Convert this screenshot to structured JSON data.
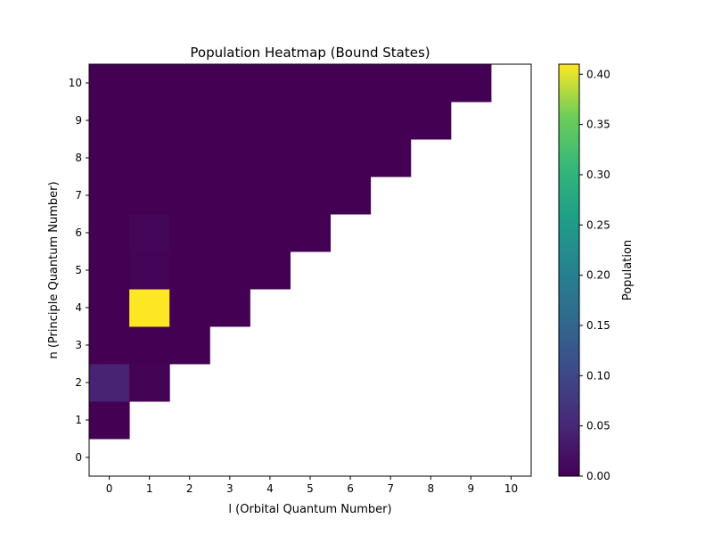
{
  "chart_data": {
    "type": "heatmap",
    "title": "Population Heatmap (Bound States)",
    "xlabel": "l (Orbital Quantum Number)",
    "ylabel": "n (Principle Quantum Number)",
    "x": [
      0,
      1,
      2,
      3,
      4,
      5,
      6,
      7,
      8,
      9,
      10
    ],
    "y": [
      0,
      1,
      2,
      3,
      4,
      5,
      6,
      7,
      8,
      9,
      10
    ],
    "xlim": [
      -0.5,
      10.5
    ],
    "ylim": [
      -0.5,
      10.5
    ],
    "colorbar": {
      "label": "Population",
      "colormap": "viridis",
      "range": [
        0,
        0.41
      ],
      "ticks": [
        0.0,
        0.05,
        0.1,
        0.15,
        0.2,
        0.25,
        0.3,
        0.35,
        0.4
      ],
      "tick_labels": [
        "0.00",
        "0.05",
        "0.10",
        "0.15",
        "0.20",
        "0.25",
        "0.30",
        "0.35",
        "0.40"
      ]
    },
    "values": [
      [
        null,
        null,
        null,
        null,
        null,
        null,
        null,
        null,
        null,
        null,
        null
      ],
      [
        0.0,
        null,
        null,
        null,
        null,
        null,
        null,
        null,
        null,
        null,
        null
      ],
      [
        0.045,
        0.002,
        null,
        null,
        null,
        null,
        null,
        null,
        null,
        null,
        null
      ],
      [
        0.0,
        0.0,
        0.0,
        null,
        null,
        null,
        null,
        null,
        null,
        null,
        null
      ],
      [
        0.0,
        0.41,
        0.0,
        0.0,
        null,
        null,
        null,
        null,
        null,
        null,
        null
      ],
      [
        0.0,
        0.004,
        0.0,
        0.0,
        0.0,
        null,
        null,
        null,
        null,
        null,
        null
      ],
      [
        0.0,
        0.006,
        0.0,
        0.0,
        0.0,
        0.0,
        null,
        null,
        null,
        null,
        null
      ],
      [
        0.0,
        0.0,
        0.0,
        0.0,
        0.0,
        0.0,
        0.0,
        null,
        null,
        null,
        null
      ],
      [
        0.0,
        0.0,
        0.0,
        0.0,
        0.0,
        0.0,
        0.0,
        0.0,
        null,
        null,
        null
      ],
      [
        0.0,
        0.0,
        0.0,
        0.0,
        0.0,
        0.0,
        0.0,
        0.0,
        0.0,
        null,
        null
      ],
      [
        0.0,
        0.0,
        0.0,
        0.0,
        0.0,
        0.0,
        0.0,
        0.0,
        0.0,
        0.0,
        null
      ]
    ]
  }
}
